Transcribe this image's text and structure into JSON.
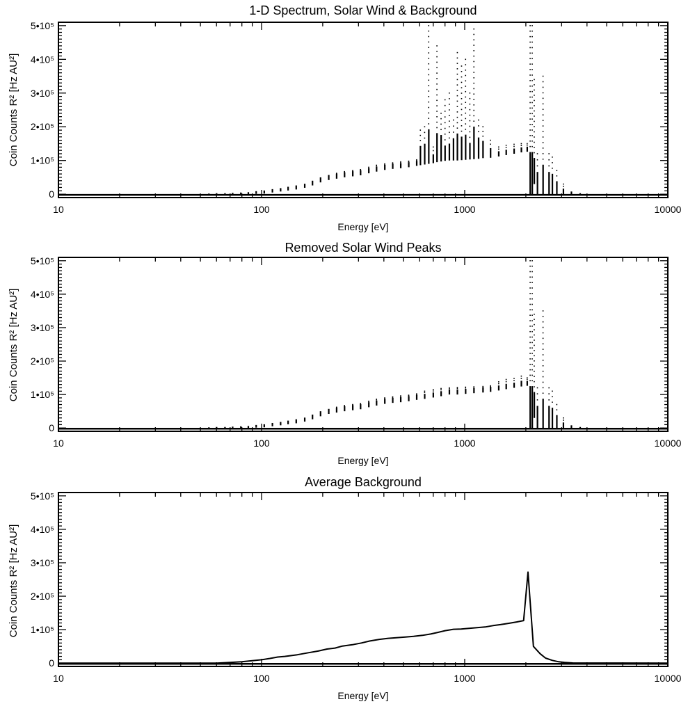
{
  "chart_data": [
    {
      "type": "scatter",
      "title": "1-D Spectrum, Solar Wind & Background",
      "xlabel": "Energy [eV]",
      "ylabel": "Coin Counts R² [Hz AU²]",
      "x_scale": "log",
      "xlim": [
        10,
        10000
      ],
      "ylim": [
        -10000,
        510000
      ],
      "x_tick_values": [
        10,
        100,
        1000,
        10000
      ],
      "x_tick_labels": [
        "10",
        "100",
        "1000",
        "10000"
      ],
      "y_tick_values": [
        0,
        100000,
        200000,
        300000,
        400000,
        500000
      ],
      "y_tick_labels": [
        "0",
        "1•10⁵",
        "2•10⁵",
        "3•10⁵",
        "4•10⁵",
        "5•10⁵"
      ],
      "grid": false,
      "series": [
        {
          "style": "vertical point scatter per energy step",
          "x": [
            55,
            60,
            66,
            72,
            79,
            86,
            94,
            103,
            113,
            124,
            135,
            148,
            163,
            178,
            195,
            214,
            234,
            256,
            281,
            307,
            337,
            368,
            404,
            442,
            484,
            530,
            580,
            605,
            635,
            665,
            700,
            730,
            765,
            800,
            840,
            880,
            920,
            965,
            1010,
            1060,
            1110,
            1170,
            1230,
            1340,
            1470,
            1600,
            1750,
            1900,
            2030,
            2100,
            2150,
            2200,
            2280,
            2430,
            2600,
            2700,
            2840,
            3060,
            3350,
            3700
          ],
          "y_low": [
            0,
            0,
            0,
            0,
            0,
            0,
            1000,
            2000,
            5000,
            8000,
            11000,
            14000,
            19000,
            26000,
            35000,
            42000,
            46000,
            50000,
            53000,
            56000,
            62000,
            67000,
            72000,
            75000,
            77000,
            80000,
            84000,
            86000,
            88000,
            90000,
            92000,
            95000,
            97000,
            99000,
            100000,
            100000,
            100000,
            101000,
            102000,
            103000,
            104000,
            105000,
            107000,
            108000,
            112000,
            116000,
            120000,
            124000,
            126000,
            0,
            0,
            30000,
            0,
            0,
            0,
            0,
            0,
            0,
            0,
            0
          ],
          "y_high": [
            2000,
            3000,
            3000,
            4000,
            5000,
            6000,
            9000,
            11000,
            15000,
            18000,
            22000,
            26000,
            31000,
            40000,
            50000,
            57000,
            62000,
            67000,
            70000,
            73000,
            80000,
            86000,
            90000,
            93000,
            96000,
            98000,
            102000,
            190000,
            200000,
            500000,
            140000,
            440000,
            240000,
            280000,
            300000,
            220000,
            420000,
            380000,
            400000,
            300000,
            490000,
            220000,
            200000,
            160000,
            140000,
            145000,
            148000,
            150000,
            150000,
            500000,
            500000,
            340000,
            120000,
            350000,
            120000,
            110000,
            70000,
            30000,
            8000,
            3000
          ]
        }
      ]
    },
    {
      "type": "scatter",
      "title": "Removed Solar Wind Peaks",
      "xlabel": "Energy [eV]",
      "ylabel": "Coin Counts R² [Hz AU²]",
      "x_scale": "log",
      "xlim": [
        10,
        10000
      ],
      "ylim": [
        -10000,
        510000
      ],
      "x_tick_values": [
        10,
        100,
        1000,
        10000
      ],
      "x_tick_labels": [
        "10",
        "100",
        "1000",
        "10000"
      ],
      "y_tick_values": [
        0,
        100000,
        200000,
        300000,
        400000,
        500000
      ],
      "y_tick_labels": [
        "0",
        "1•10⁵",
        "2•10⁵",
        "3•10⁵",
        "4•10⁵",
        "5•10⁵"
      ],
      "grid": false,
      "series": [
        {
          "style": "vertical point scatter per energy step",
          "x": [
            55,
            60,
            66,
            72,
            79,
            86,
            94,
            103,
            113,
            124,
            135,
            148,
            163,
            178,
            195,
            214,
            234,
            256,
            281,
            307,
            337,
            368,
            404,
            442,
            484,
            530,
            580,
            635,
            700,
            765,
            840,
            920,
            1010,
            1110,
            1230,
            1340,
            1470,
            1600,
            1750,
            1900,
            2030,
            2100,
            2150,
            2200,
            2280,
            2430,
            2600,
            2700,
            2840,
            3060,
            3350,
            3700
          ],
          "y_low": [
            0,
            0,
            0,
            0,
            0,
            0,
            1000,
            2000,
            5000,
            8000,
            11000,
            14000,
            19000,
            26000,
            35000,
            42000,
            46000,
            50000,
            53000,
            56000,
            62000,
            67000,
            72000,
            75000,
            77000,
            80000,
            84000,
            87000,
            91000,
            95000,
            100000,
            100000,
            102000,
            104000,
            106000,
            108000,
            112000,
            116000,
            120000,
            124000,
            126000,
            0,
            0,
            30000,
            0,
            0,
            0,
            0,
            0,
            0,
            0,
            0
          ],
          "y_high": [
            2000,
            3000,
            3000,
            4000,
            5000,
            6000,
            9000,
            11000,
            15000,
            18000,
            22000,
            26000,
            31000,
            40000,
            50000,
            57000,
            62000,
            67000,
            70000,
            73000,
            80000,
            86000,
            90000,
            93000,
            96000,
            98000,
            102000,
            110000,
            115000,
            118000,
            120000,
            121000,
            122000,
            123000,
            124000,
            126000,
            138000,
            145000,
            148000,
            155000,
            150000,
            500000,
            500000,
            340000,
            120000,
            350000,
            120000,
            110000,
            70000,
            30000,
            8000,
            3000
          ]
        }
      ]
    },
    {
      "type": "line",
      "title": "Average Background",
      "xlabel": "Energy [eV]",
      "ylabel": "Coin Counts R² [Hz AU²]",
      "x_scale": "log",
      "xlim": [
        10,
        10000
      ],
      "ylim": [
        -10000,
        510000
      ],
      "x_tick_values": [
        10,
        100,
        1000,
        10000
      ],
      "x_tick_labels": [
        "10",
        "100",
        "1000",
        "10000"
      ],
      "y_tick_values": [
        0,
        100000,
        200000,
        300000,
        400000,
        500000
      ],
      "y_tick_labels": [
        "0",
        "1•10⁵",
        "2•10⁵",
        "3•10⁵",
        "4•10⁵",
        "5•10⁵"
      ],
      "grid": false,
      "series": [
        {
          "x": [
            10,
            60,
            70,
            80,
            90,
            100,
            110,
            120,
            130,
            150,
            170,
            190,
            210,
            230,
            250,
            280,
            310,
            340,
            380,
            420,
            460,
            510,
            560,
            620,
            680,
            740,
            800,
            880,
            960,
            1050,
            1150,
            1260,
            1380,
            1500,
            1650,
            1800,
            1950,
            2050,
            2180,
            2350,
            2500,
            2700,
            2900,
            3100,
            3400,
            10000
          ],
          "y": [
            0,
            0,
            2000,
            4000,
            7000,
            10000,
            14000,
            18000,
            20000,
            25000,
            31000,
            36000,
            42000,
            45000,
            51000,
            55000,
            60000,
            66000,
            71000,
            74000,
            76000,
            78000,
            80000,
            83000,
            87000,
            92000,
            97000,
            101000,
            102000,
            104000,
            106000,
            108000,
            112000,
            115000,
            119000,
            123000,
            127000,
            272000,
            50000,
            28000,
            15000,
            8000,
            4000,
            2000,
            500,
            0
          ]
        }
      ]
    }
  ]
}
